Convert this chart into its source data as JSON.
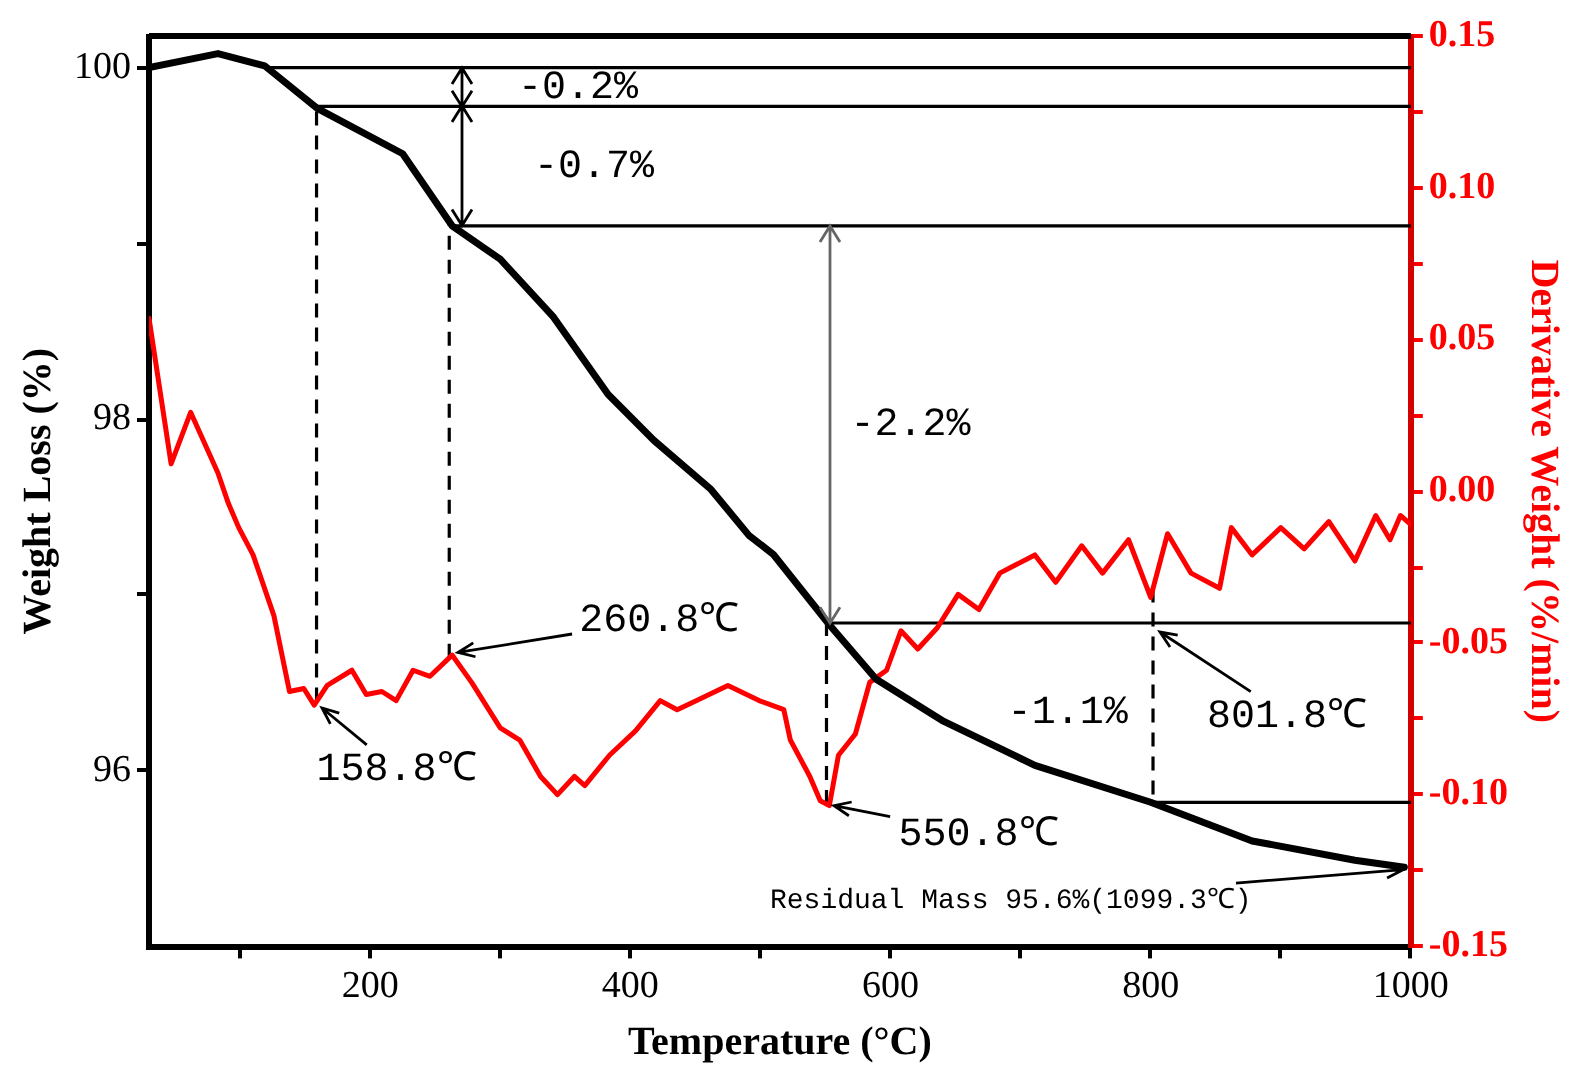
{
  "chart_data": {
    "type": "line",
    "xlabel": "Temperature (°C)",
    "ylabel": "Weight Loss (%)",
    "y2label": "Derivative Weight (%/min)",
    "xlim": [
      30,
      1000
    ],
    "xticks": [
      {
        "value": 100,
        "label": null
      },
      200,
      {
        "value": 300,
        "label": null
      },
      400,
      {
        "value": 500,
        "label": null
      },
      600,
      {
        "value": 700,
        "label": null
      },
      800,
      {
        "value": 900,
        "label": null
      },
      1000
    ],
    "ylim": [
      95,
      100.18
    ],
    "yticks": [
      96,
      {
        "value": 97,
        "label": null
      },
      98,
      {
        "value": 99,
        "label": null
      },
      100
    ],
    "y2lim": [
      -0.15,
      0.15
    ],
    "y2ticks": [
      -0.15,
      {
        "value": -0.125,
        "label": null
      },
      {
        "value": -0.1,
        "label": "-0.10"
      },
      {
        "value": -0.075,
        "label": null
      },
      -0.05,
      {
        "value": -0.025,
        "label": null
      },
      {
        "value": 0,
        "label": "0.00"
      },
      {
        "value": 0.025,
        "label": null
      },
      0.05,
      {
        "value": 0.075,
        "label": null
      },
      {
        "value": 0.1,
        "label": "0.10"
      },
      {
        "value": 0.125,
        "label": null
      },
      0.15
    ],
    "grid": false,
    "legend": false,
    "series": [
      {
        "color": "#000000",
        "x": [
          30,
          83,
          119,
          159,
          225,
          263,
          300,
          341,
          383,
          418,
          462,
          491,
          510,
          553,
          589,
          641,
          711,
          800,
          878,
          957,
          995
        ],
        "values": [
          100.0,
          100.08,
          100.01,
          99.77,
          99.51,
          99.1,
          98.91,
          98.58,
          98.14,
          97.88,
          97.6,
          97.34,
          97.23,
          96.83,
          96.52,
          96.28,
          96.03,
          95.82,
          95.6,
          95.49,
          95.45
        ]
      },
      {
        "color": "#ff0000",
        "axis": "y2",
        "x": [
          30,
          47,
          62,
          83,
          91,
          99,
          110,
          126,
          138,
          149,
          157,
          167,
          186,
          197,
          209,
          220,
          233,
          246,
          263,
          278,
          300,
          315,
          331,
          344,
          357,
          365,
          384,
          404,
          423,
          436,
          451,
          475,
          499,
          518,
          523,
          538,
          546,
          553,
          560,
          573,
          584,
          597,
          608,
          621,
          636,
          652,
          668,
          684,
          711,
          727,
          747,
          763,
          783,
          800,
          813,
          831,
          853,
          862,
          878,
          900,
          918,
          937,
          957,
          973,
          984,
          992,
          1000
        ],
        "values": [
          0.057,
          0.009,
          0.026,
          0.006,
          -0.004,
          -0.012,
          -0.021,
          -0.041,
          -0.066,
          -0.065,
          -0.0705,
          -0.064,
          -0.059,
          -0.067,
          -0.066,
          -0.069,
          -0.059,
          -0.061,
          -0.054,
          -0.063,
          -0.078,
          -0.082,
          -0.094,
          -0.1,
          -0.094,
          -0.097,
          -0.087,
          -0.079,
          -0.069,
          -0.072,
          -0.069,
          -0.064,
          -0.069,
          -0.072,
          -0.082,
          -0.094,
          -0.102,
          -0.1036,
          -0.087,
          -0.08,
          -0.063,
          -0.059,
          -0.046,
          -0.052,
          -0.045,
          -0.034,
          -0.039,
          -0.027,
          -0.021,
          -0.03,
          -0.018,
          -0.027,
          -0.016,
          -0.035,
          -0.014,
          -0.027,
          -0.032,
          -0.012,
          -0.021,
          -0.012,
          -0.019,
          -0.01,
          -0.023,
          -0.008,
          -0.016,
          -0.008,
          -0.011
        ]
      }
    ],
    "ref_lines": [
      {
        "axis": "y",
        "value": 100.0,
        "color": "#000000"
      },
      {
        "axis": "y",
        "value": 99.78,
        "color": "#000000"
      },
      {
        "axis": "y",
        "value": 99.1,
        "color": "#000000"
      },
      {
        "axis": "y",
        "value": 96.84,
        "color": "#000000"
      },
      {
        "axis": "y",
        "value": 95.82,
        "color": "#000000"
      },
      {
        "axis": "x",
        "value": 158.8,
        "color": "#000000",
        "line_style": "dashed"
      },
      {
        "axis": "x",
        "value": 260.8,
        "color": "#000000",
        "line_style": "dashed"
      },
      {
        "axis": "x",
        "value": 550.8,
        "color": "#000000",
        "line_style": "dashed"
      },
      {
        "axis": "x",
        "value": 801.8,
        "color": "#000000",
        "line_style": "dashed"
      }
    ],
    "annotations": [
      "-0.2%",
      "-0.7%",
      "-2.2%",
      "-1.1%",
      {
        "text": "158.8℃",
        "x": 158.8,
        "y": 96.38
      },
      {
        "text": "260.8℃",
        "x": 260.8,
        "y": 96.66
      },
      {
        "text": "550.8℃",
        "x": 550.8,
        "y": 95.81
      },
      {
        "text": "801.8℃",
        "x": 801.8,
        "y": 96.81
      },
      {
        "text": "Residual Mass 95.6%(1099.3℃)",
        "x": 1000,
        "y": 95.44
      }
    ]
  }
}
